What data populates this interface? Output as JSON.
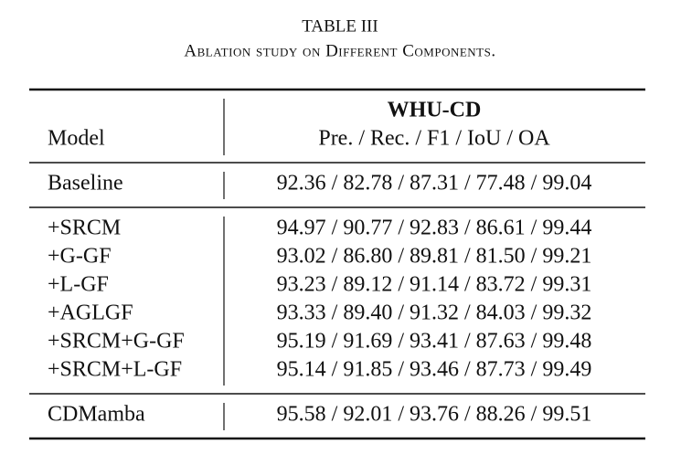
{
  "header": {
    "title": "TABLE III",
    "caption": "Ablation study on Different Components."
  },
  "table": {
    "column_headers": {
      "model": "Model",
      "dataset": "WHU-CD",
      "metrics": "Pre. / Rec. / F1 / IoU / OA"
    },
    "groups": [
      [
        [
          "Baseline",
          "92.36 / 82.78 / 87.31 / 77.48 / 99.04"
        ]
      ],
      [
        [
          "+SRCM",
          "94.97 / 90.77 / 92.83 / 86.61 / 99.44"
        ],
        [
          "+G-GF",
          "93.02 / 86.80 / 89.81 / 81.50 / 99.21"
        ],
        [
          "+L-GF",
          "93.23 / 89.12 / 91.14 / 83.72 / 99.31"
        ],
        [
          "+AGLGF",
          "93.33 / 89.40 / 91.32 / 84.03 / 99.32"
        ],
        [
          "+SRCM+G-GF",
          "95.19 / 91.69 / 93.41 / 87.63 / 99.48"
        ],
        [
          "+SRCM+L-GF",
          "95.14 / 91.85 / 93.46 / 87.73 / 99.49"
        ]
      ],
      [
        [
          "CDMamba",
          "95.58 / 92.01 / 93.76 / 88.26 / 99.51"
        ]
      ]
    ]
  }
}
